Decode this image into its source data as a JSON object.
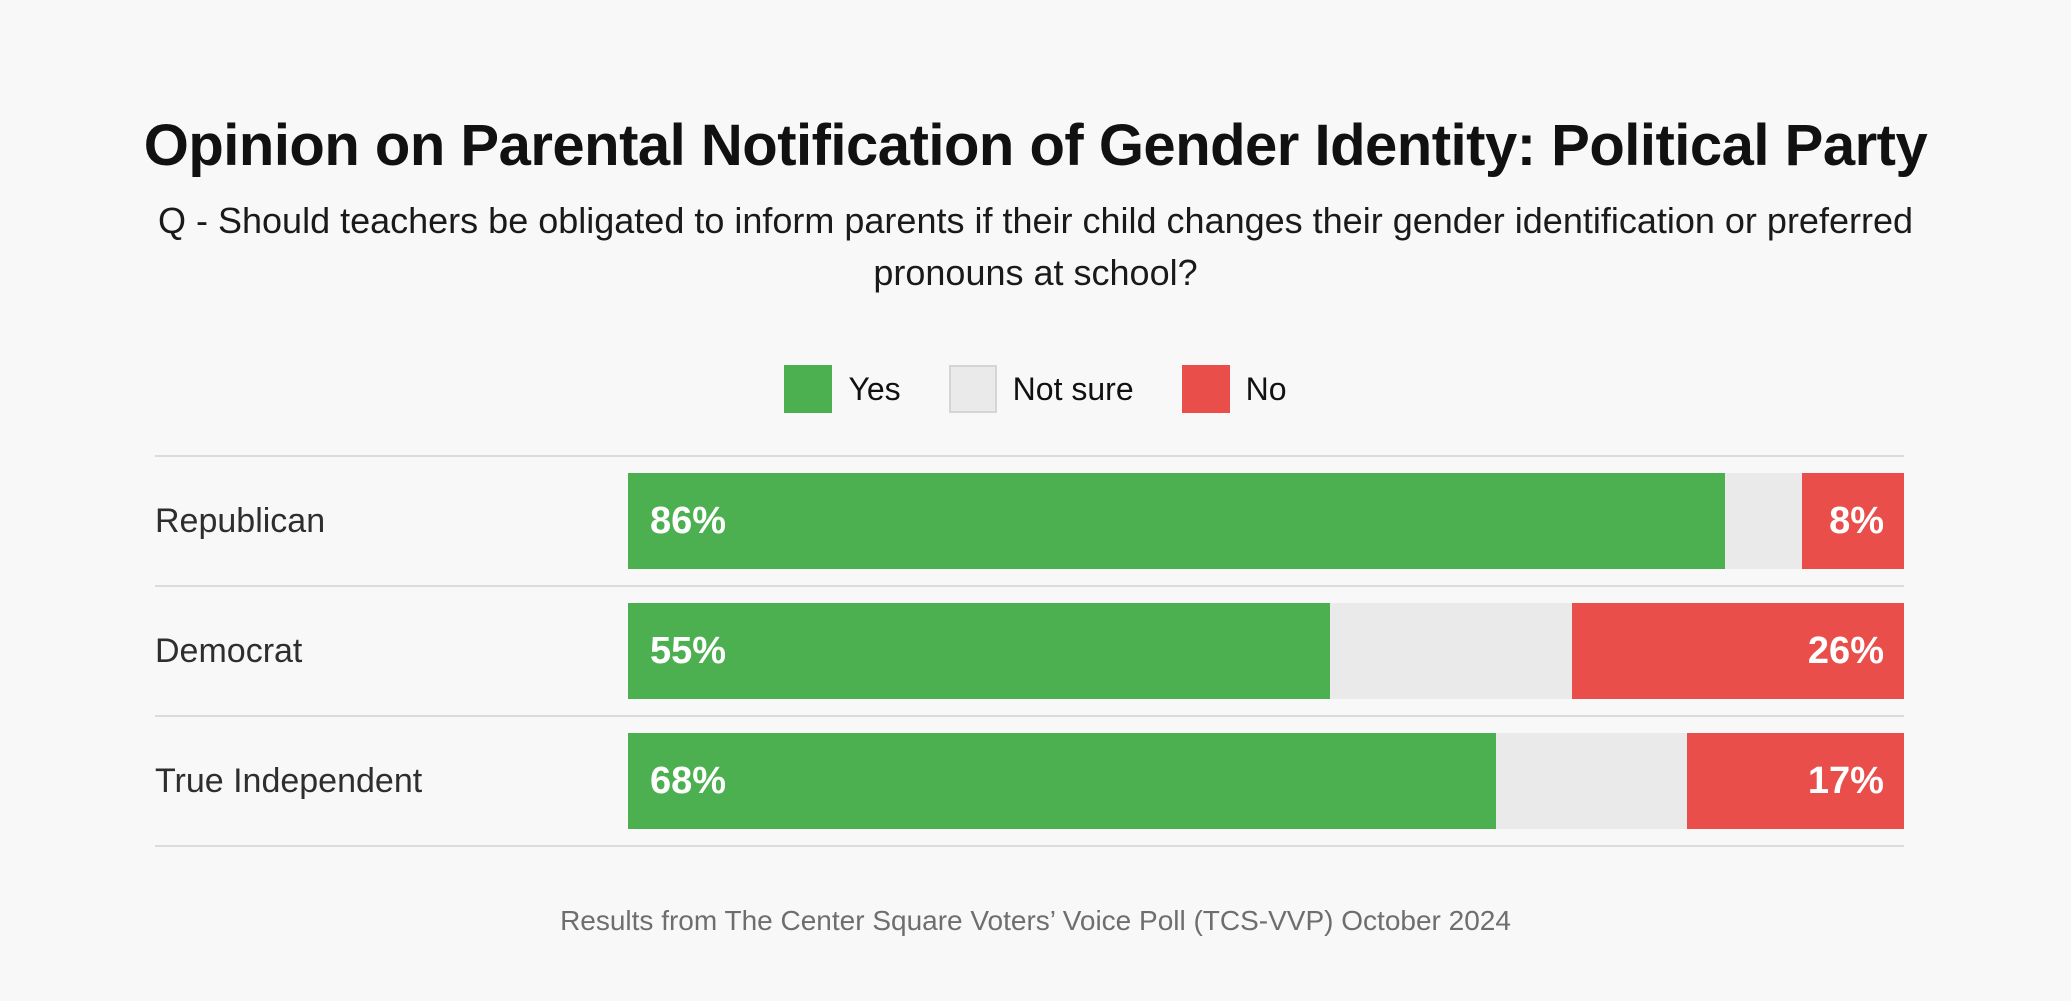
{
  "page": {
    "title": "Opinion on Parental Notification of Gender Identity: Political Party",
    "subtitle": "Q - Should teachers be obligated to inform parents if their child changes their gender identification or preferred pronouns at school?",
    "footer": "Results from The Center Square Voters’ Voice Poll (TCS-VVP) October 2024"
  },
  "colors": {
    "background": "#F8F8F8",
    "yes": "#4CAF50",
    "not_sure": "#EAEAEA",
    "not_sure_border": "#D5D5D5",
    "no": "#E94E4B",
    "divider": "#DBDBDB",
    "bar_value_text": "#FFFFFF",
    "footer_text": "#6E6E6E"
  },
  "legend": [
    {
      "label": "Yes",
      "color": "#4CAF50",
      "border": ""
    },
    {
      "label": "Not sure",
      "color": "#EAEAEA",
      "border": "#D5D5D5"
    },
    {
      "label": "No",
      "color": "#E94E4B",
      "border": ""
    }
  ],
  "chart_data": {
    "type": "bar",
    "orientation": "horizontal",
    "stacked": true,
    "title": "Opinion on Parental Notification of Gender Identity: Political Party",
    "subtitle": "Q - Should teachers be obligated to inform parents if their child changes their gender identification or preferred pronouns at school?",
    "categories": [
      "Republican",
      "Democrat",
      "True Independent"
    ],
    "series": [
      {
        "name": "Yes",
        "color": "#4CAF50",
        "values": [
          86,
          55,
          68
        ]
      },
      {
        "name": "Not sure",
        "color": "#EAEAEA",
        "values": [
          6,
          19,
          15
        ]
      },
      {
        "name": "No",
        "color": "#E94E4B",
        "values": [
          8,
          26,
          17
        ]
      }
    ],
    "value_unit": "%",
    "xlim": [
      0,
      100
    ],
    "grid": false,
    "legend_position": "top-center",
    "bar_label_rule": "Yes segment labeled at left inside bar, No segment labeled at right inside bar, Not sure unlabeled",
    "source": "Results from The Center Square Voters’ Voice Poll (TCS-VVP) October 2024"
  }
}
